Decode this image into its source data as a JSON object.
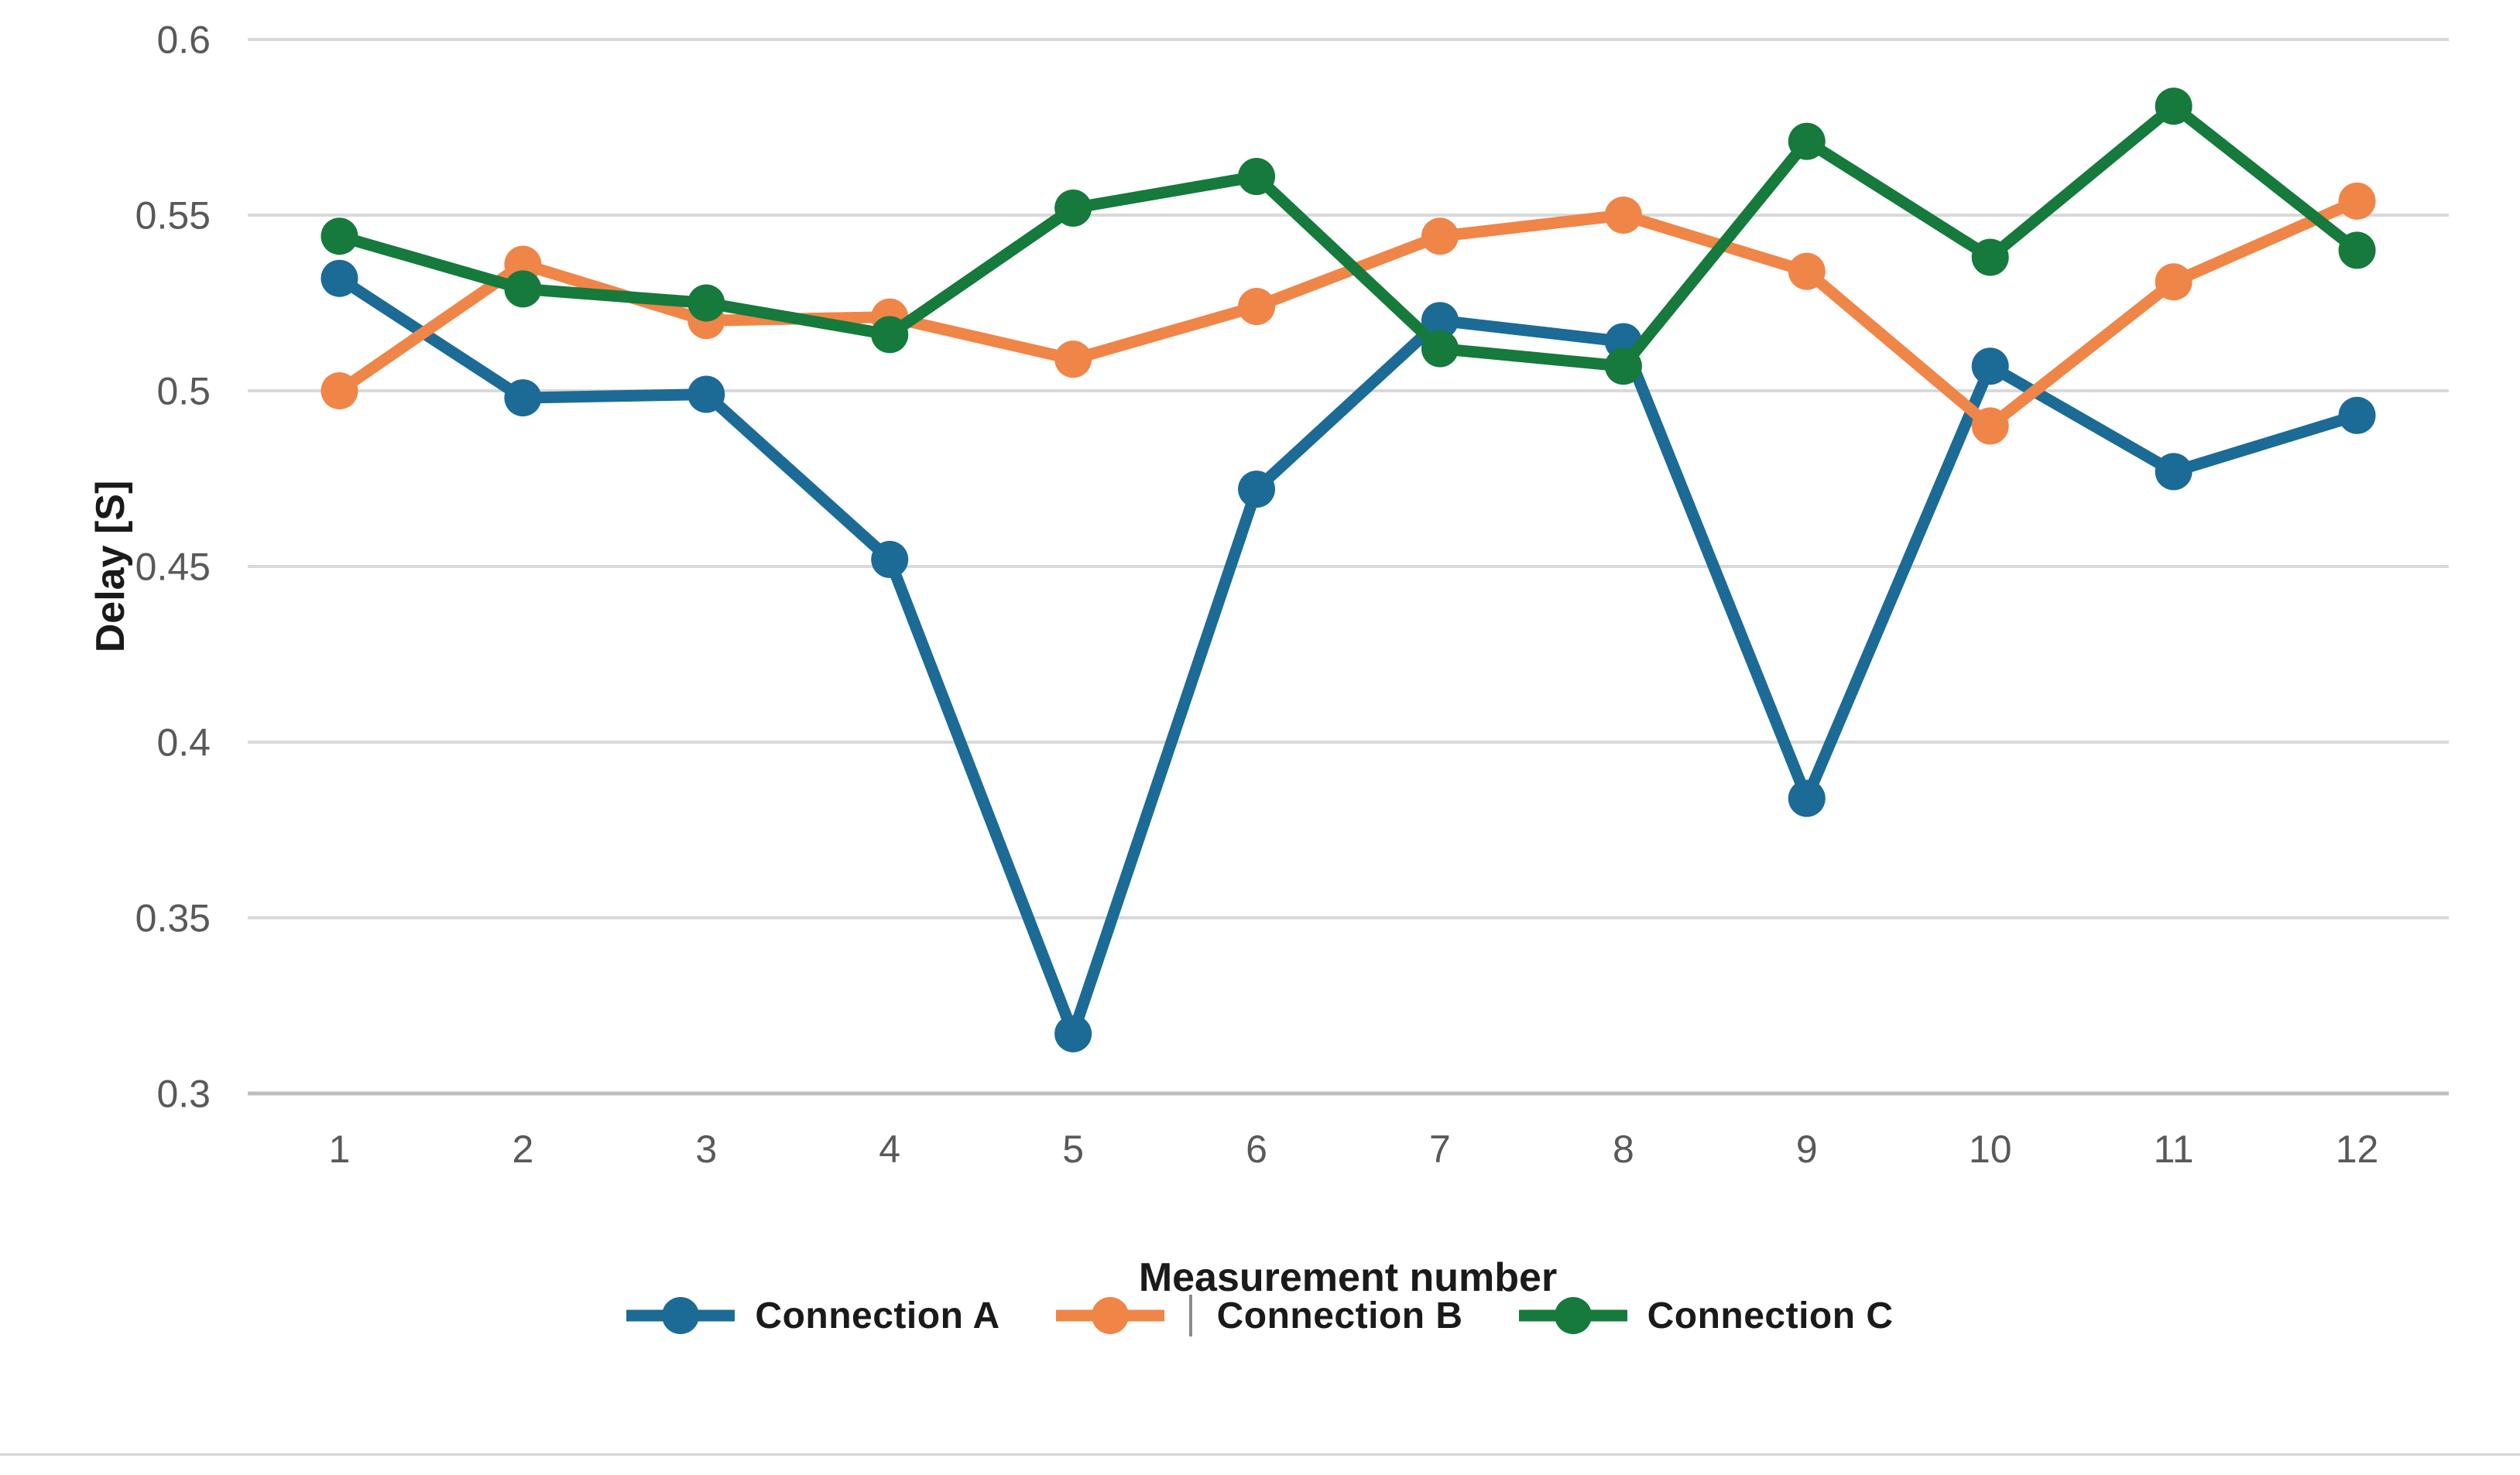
{
  "chart_data": {
    "type": "line",
    "title": "",
    "xlabel": "Measurement number",
    "ylabel": "Delay [S]",
    "categories": [
      "1",
      "2",
      "3",
      "4",
      "5",
      "6",
      "7",
      "8",
      "9",
      "10",
      "11",
      "12"
    ],
    "series": [
      {
        "name": "Connection A",
        "color": "#1B6B96",
        "values": [
          0.532,
          0.498,
          0.499,
          0.452,
          0.317,
          0.472,
          0.52,
          0.514,
          0.384,
          0.507,
          0.477,
          0.493
        ]
      },
      {
        "name": "Connection B",
        "color": "#F08548",
        "values": [
          0.5,
          0.536,
          0.52,
          0.521,
          0.509,
          0.524,
          0.544,
          0.55,
          0.534,
          0.49,
          0.531,
          0.554
        ]
      },
      {
        "name": "Connection C",
        "color": "#157A3B",
        "values": [
          0.544,
          0.529,
          0.525,
          0.516,
          0.552,
          0.561,
          0.512,
          0.507,
          0.571,
          0.538,
          0.581,
          0.54
        ]
      }
    ],
    "ylim": [
      0.3,
      0.6
    ],
    "ytick_step": 0.05,
    "ytick_labels": [
      "0.6",
      "0.55",
      "0.5",
      "0.45",
      "0.4",
      "0.35",
      "0.3"
    ],
    "xlim_type": "categorical",
    "grid": "horizontal-only",
    "legend_position": "bottom-center",
    "marker": "filled-circle",
    "colors": {
      "gridline": "#D9D9D9",
      "axis_line": "#BFBFBF",
      "tick_text": "#595959",
      "axis_title_text": "#1a1a1a"
    }
  }
}
